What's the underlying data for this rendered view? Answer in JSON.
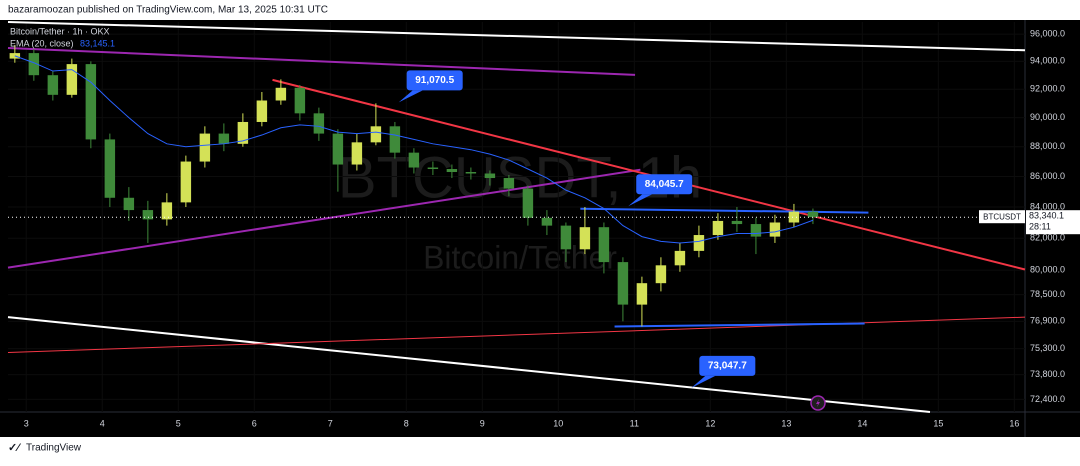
{
  "header": "bazaramoozan published on TradingView.com, Mar 13, 2025 10:31 UTC",
  "footer": "TradingView",
  "chart_data": {
    "type": "candlestick",
    "legend": {
      "symbol": "Bitcoin/Tether · 1h · OKX",
      "ema_name": "EMA (20, close)",
      "ema_value": {
        "value": 83145.1,
        "label": "83,145.1"
      }
    },
    "watermark": {
      "ticker": "BTCUSDT, 1h",
      "name": "Bitcoin/Tether"
    },
    "price_tag": {
      "symbol": "BTCUSDT",
      "last": {
        "value": 83340.1,
        "label": "83,340.1"
      },
      "countdown": "28:11"
    },
    "log_scale": true,
    "up_color": "#d4e157",
    "down_color": "#3f8a3a",
    "ema_color": "#2962ff",
    "xlim": [
      2.76,
      16.14
    ],
    "ylim": [
      71700,
      96900
    ],
    "xticks": [
      3,
      4,
      5,
      6,
      7,
      8,
      9,
      10,
      11,
      12,
      13,
      14,
      15,
      16
    ],
    "yticks": [
      {
        "value": 96000,
        "label": "96,000.0"
      },
      {
        "value": 94000,
        "label": "94,000.0"
      },
      {
        "value": 92000,
        "label": "92,000.0"
      },
      {
        "value": 90000,
        "label": "90,000.0"
      },
      {
        "value": 88000,
        "label": "88,000.0"
      },
      {
        "value": 86000,
        "label": "86,000.0"
      },
      {
        "value": 84000,
        "label": "84,000.0"
      },
      {
        "value": 82000,
        "label": "82,000.0"
      },
      {
        "value": 80000,
        "label": "80,000.0"
      },
      {
        "value": 78500,
        "label": "78,500.0"
      },
      {
        "value": 76900,
        "label": "76,900.0"
      },
      {
        "value": 75300,
        "label": "75,300.0"
      },
      {
        "value": 73800,
        "label": "73,800.0"
      },
      {
        "value": 72400,
        "label": "72,400.0"
      }
    ],
    "x": [
      2.85,
      3.1,
      3.35,
      3.6,
      3.85,
      4.1,
      4.35,
      4.6,
      4.85,
      5.1,
      5.35,
      5.6,
      5.85,
      6.1,
      6.35,
      6.6,
      6.85,
      7.1,
      7.35,
      7.6,
      7.85,
      8.1,
      8.35,
      8.6,
      8.85,
      9.1,
      9.35,
      9.6,
      9.85,
      10.1,
      10.35,
      10.6,
      10.85,
      11.1,
      11.35,
      11.6,
      11.85,
      12.1,
      12.35,
      12.6,
      12.85,
      13.1,
      13.35
    ],
    "open": [
      94200,
      94600,
      93000,
      91600,
      93800,
      88500,
      84600,
      83800,
      83200,
      84300,
      87000,
      88900,
      88200,
      89700,
      91200,
      92100,
      90300,
      88900,
      86800,
      88300,
      89400,
      87600,
      86600,
      86500,
      86300,
      86200,
      85900,
      85200,
      83300,
      82800,
      81300,
      82700,
      80500,
      77900,
      79200,
      80300,
      81200,
      82200,
      83100,
      82900,
      82100,
      83000,
      83700
    ],
    "high": [
      95200,
      94900,
      93300,
      94200,
      94000,
      88900,
      85300,
      84400,
      84900,
      87400,
      89400,
      89600,
      90300,
      91800,
      92700,
      92300,
      90700,
      89200,
      88900,
      91000,
      89700,
      87900,
      87000,
      86800,
      86600,
      86400,
      86100,
      85400,
      83800,
      83000,
      84000,
      83000,
      80800,
      79600,
      80800,
      81700,
      82800,
      83600,
      84000,
      83300,
      83500,
      84200,
      83900
    ],
    "low": [
      93900,
      92600,
      91200,
      91400,
      87900,
      84000,
      83100,
      81700,
      82800,
      84000,
      86600,
      87700,
      88000,
      89400,
      90900,
      89800,
      88400,
      85000,
      86400,
      88100,
      87200,
      86200,
      86100,
      85900,
      85800,
      85400,
      84700,
      82800,
      82200,
      80500,
      81000,
      79800,
      76900,
      76600,
      78700,
      79900,
      80800,
      81900,
      82400,
      81000,
      81700,
      82700,
      82900
    ],
    "close": [
      94600,
      93000,
      91600,
      93800,
      88500,
      84600,
      83800,
      83200,
      84300,
      87000,
      88900,
      88200,
      89700,
      91200,
      92100,
      90300,
      88900,
      86800,
      88300,
      89400,
      87600,
      86600,
      86500,
      86300,
      86200,
      85900,
      85200,
      83300,
      82800,
      81300,
      82700,
      80500,
      77900,
      79200,
      80300,
      81200,
      82200,
      83100,
      82900,
      82100,
      83000,
      83700,
      83340.1
    ],
    "ema": [
      94400,
      93900,
      93300,
      93400,
      92500,
      91200,
      90000,
      88900,
      88200,
      88000,
      88100,
      88200,
      88400,
      88800,
      89300,
      89500,
      89400,
      89000,
      88900,
      89000,
      88800,
      88500,
      88200,
      88000,
      87800,
      87500,
      87100,
      86500,
      85900,
      85100,
      84600,
      83900,
      82800,
      82100,
      81800,
      81700,
      81800,
      82100,
      82300,
      82300,
      82400,
      82700,
      83145.1
    ],
    "drawings": [
      {
        "color": "#ffffff",
        "x": [
          2.76,
          16.14
        ],
        "values": [
          96900,
          94805
        ]
      },
      {
        "color": "#ffffff",
        "x": [
          2.76,
          14.89
        ],
        "values": [
          77149,
          71700
        ]
      },
      {
        "color": "#9c27b0",
        "x": [
          2.76,
          11.01
        ],
        "values": [
          94977,
          93020
        ]
      },
      {
        "color": "#9c27b0",
        "x": [
          2.76,
          11.08
        ],
        "values": [
          80156,
          86452
        ]
      },
      {
        "color": "#f23645",
        "x": [
          6.24,
          16.14
        ],
        "values": [
          92665,
          80040
        ]
      },
      {
        "color": "#f23645",
        "x": [
          2.76,
          16.14
        ],
        "values": [
          75069,
          77149
        ]
      },
      {
        "color": "#2962ff",
        "x": [
          10.29,
          14.08
        ],
        "values": [
          83886,
          83636
        ]
      },
      {
        "color": "#2962ff",
        "x": [
          10.74,
          14.03
        ],
        "values": [
          76592,
          76773
        ]
      }
    ],
    "annotations": [
      {
        "x": 7.9,
        "value": 91070.5,
        "label": "91,070.5"
      },
      {
        "x": 10.92,
        "value": 84045.7,
        "label": "84,045.7"
      },
      {
        "x": 11.75,
        "value": 73047.7,
        "label": "73,047.7"
      }
    ]
  }
}
